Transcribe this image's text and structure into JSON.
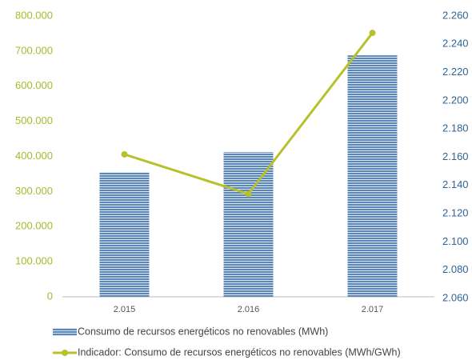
{
  "chart_data": {
    "type": "bar",
    "categories": [
      "2.015",
      "2.016",
      "2.017"
    ],
    "series": [
      {
        "name": "Consumo de recursos energéticos no renovables (MWh)",
        "type": "bar",
        "color": "#5b86b8",
        "values": [
          355000,
          412000,
          688000
        ]
      },
      {
        "name": "Indicador: Consumo de recursos energéticos no renovables (MWh/GWh)",
        "type": "line",
        "axis": "y2",
        "color": "#b7c12c",
        "values": [
          2162,
          2134,
          2248
        ]
      }
    ],
    "ylim": [
      0,
      800000
    ],
    "yticks": [
      0,
      {
        "value": 100000,
        "label": "100.000"
      },
      {
        "value": 200000,
        "label": "200.000"
      },
      {
        "value": 300000,
        "label": "300.000"
      },
      {
        "value": 400000,
        "label": "400.000"
      },
      {
        "value": 500000,
        "label": "500.000"
      },
      {
        "value": 600000,
        "label": "600.000"
      },
      {
        "value": 700000,
        "label": "700.000"
      },
      {
        "value": 800000,
        "label": "800.000"
      }
    ],
    "y2lim": [
      2060,
      2260
    ],
    "y2ticks": [
      {
        "value": 2060,
        "label": "2.060"
      },
      {
        "value": 2080,
        "label": "2.080"
      },
      {
        "value": 2100,
        "label": "2.100"
      },
      {
        "value": 2120,
        "label": "2.120"
      },
      {
        "value": 2140,
        "label": "2.140"
      },
      {
        "value": 2160,
        "label": "2.160"
      },
      {
        "value": 2180,
        "label": "2.180"
      },
      {
        "value": 2200,
        "label": "2.200"
      },
      {
        "value": 2220,
        "label": "2.220"
      },
      {
        "value": 2240,
        "label": "2.240"
      },
      {
        "value": 2260,
        "label": "2.260"
      }
    ],
    "legend": "bottom"
  }
}
